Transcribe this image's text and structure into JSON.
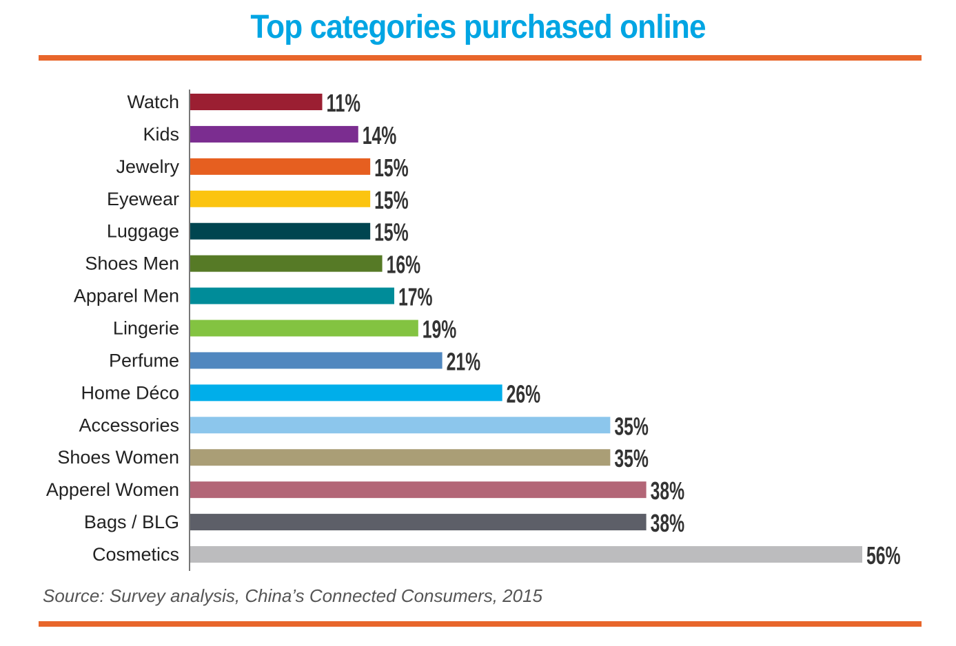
{
  "chart_data": {
    "type": "bar",
    "orientation": "horizontal",
    "title": "Top categories purchased online",
    "source": "Source: Survey analysis, China’s Connected Consumers, 2015",
    "xlim": [
      0,
      56
    ],
    "grid": false,
    "legend": "none",
    "value_format": "percent",
    "categories": [
      "Watch",
      "Kids",
      "Jewelry",
      "Eyewear",
      "Luggage",
      "Shoes Men",
      "Apparel Men",
      "Lingerie",
      "Perfume",
      "Home Déco",
      "Accessories",
      "Shoes Women",
      "Apperel Women",
      "Bags / BLG",
      "Cosmetics"
    ],
    "values": [
      11,
      14,
      15,
      15,
      15,
      16,
      17,
      19,
      21,
      26,
      35,
      35,
      38,
      38,
      56
    ],
    "value_labels": [
      "11%",
      "14%",
      "15%",
      "15%",
      "15%",
      "16%",
      "17%",
      "19%",
      "21%",
      "26%",
      "35%",
      "35%",
      "38%",
      "38%",
      "56%"
    ],
    "colors": [
      "#9b1f32",
      "#7b2d90",
      "#e65f20",
      "#fbc410",
      "#004550",
      "#567a26",
      "#008c99",
      "#83c341",
      "#5087bf",
      "#00aeea",
      "#8cc6ec",
      "#aa9e76",
      "#b36677",
      "#5d5f68",
      "#bcbcbe"
    ]
  },
  "theme": {
    "title_color": "#00a5e3",
    "rule_color": "#e8662b",
    "axis_color": "#777777"
  }
}
